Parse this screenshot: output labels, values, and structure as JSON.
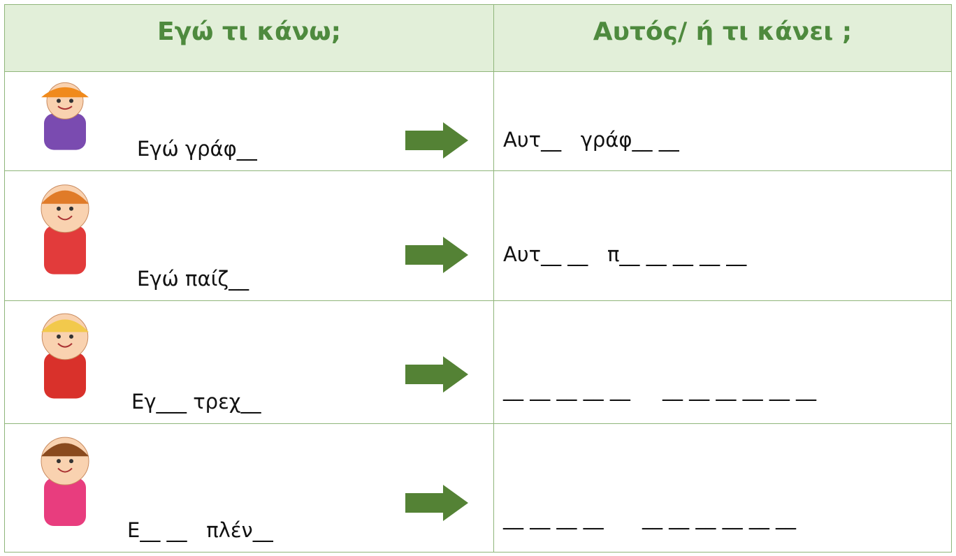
{
  "header": {
    "left": "Εγώ τι κάνω;",
    "right": "Αυτός/ ή τι κάνει ;"
  },
  "rows": [
    {
      "left": "Εγώ γράφ__",
      "right": "Αυτ__   γράφ__ __"
    },
    {
      "left": "Εγώ παίζ__",
      "right": "Αυτ__ __   π__ __ __ __ __"
    },
    {
      "left": "Εγ___ τρεχ__",
      "right": "__ __ __ __ __     __ __ __ __ __ __"
    },
    {
      "left": "Ε__ __   πλέν__",
      "right": "__ __ __ __      __ __ __ __ __ __"
    }
  ]
}
